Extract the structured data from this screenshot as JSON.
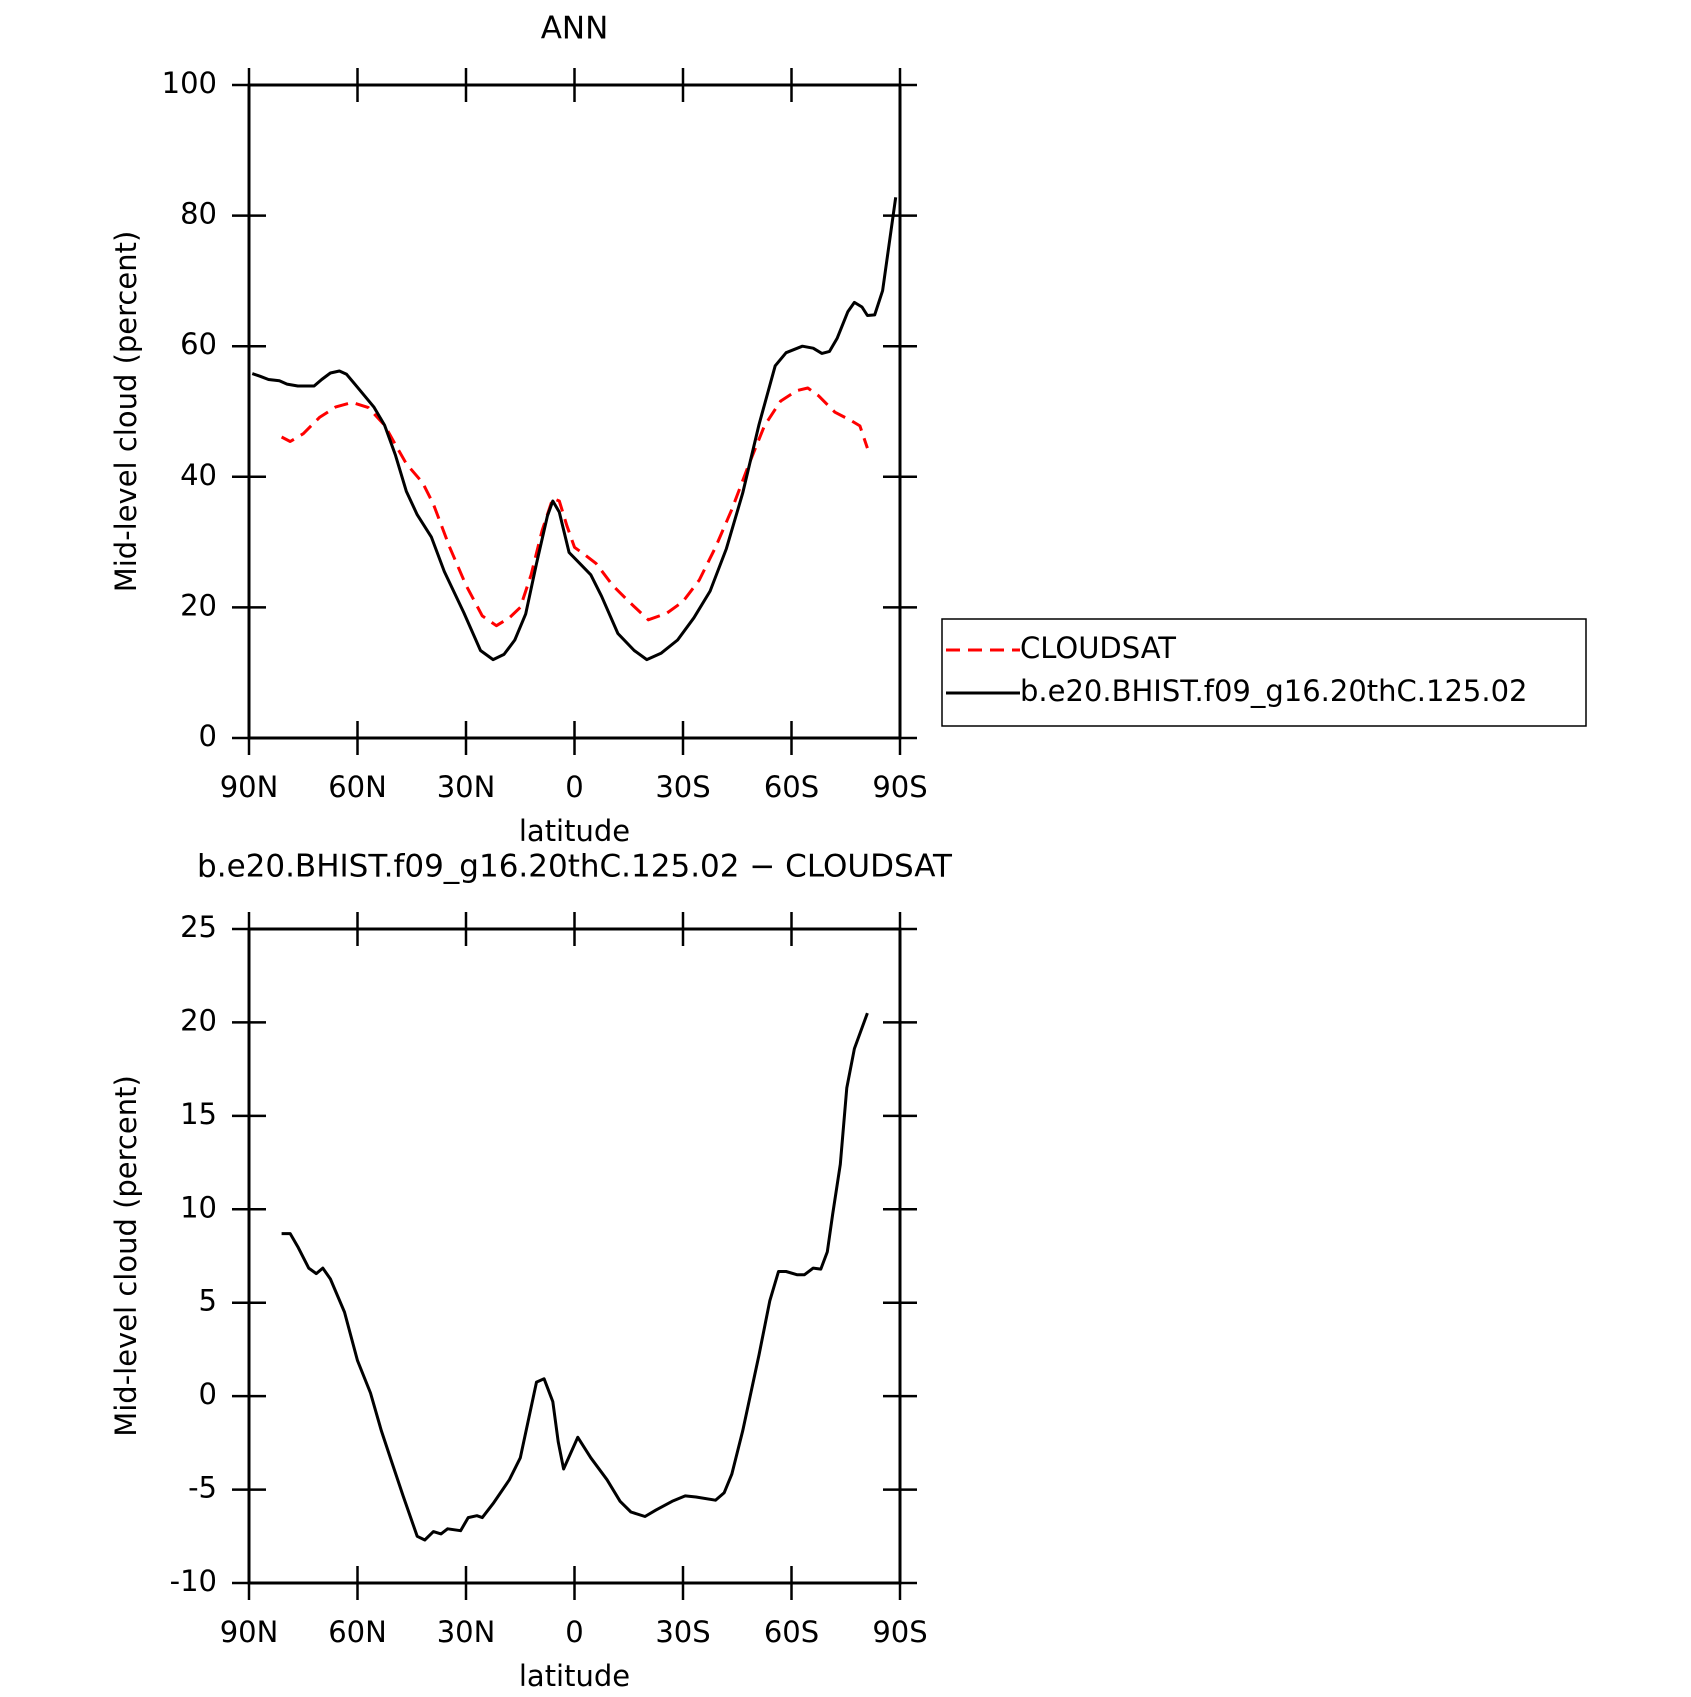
{
  "chart_data": [
    {
      "type": "line",
      "title": "ANN",
      "xlabel": "latitude",
      "ylabel": "Mid-level cloud (percent)",
      "xlim": [
        90,
        -90
      ],
      "xticks": [
        {
          "value": 90,
          "label": "90N"
        },
        {
          "value": 60,
          "label": "60N"
        },
        {
          "value": 30,
          "label": "30N"
        },
        0,
        {
          "value": -30,
          "label": "30S"
        },
        {
          "value": -60,
          "label": "60S"
        },
        {
          "value": -90,
          "label": "90S"
        }
      ],
      "ylim": [
        0,
        100
      ],
      "yticks": [
        0,
        20,
        40,
        60,
        80,
        100
      ],
      "legend": "right",
      "series": [
        {
          "name": "CLOUDSAT",
          "color": "#ff0000",
          "dash": true,
          "x": [
            81,
            78.6,
            75,
            70.5,
            66,
            61.5,
            57,
            52.5,
            49.5,
            46.5,
            42,
            39,
            34.5,
            30,
            25.5,
            21.6,
            18,
            15,
            12,
            9,
            6,
            4.2,
            2.1,
            0,
            -3,
            -6,
            -10.5,
            -15,
            -20.4,
            -25.5,
            -30,
            -34.5,
            -39,
            -43.5,
            -48,
            -52.5,
            -57,
            -61.5,
            -64.5,
            -67.5,
            -72,
            -76.5,
            -78.9,
            -81
          ],
          "values": [
            46.1,
            45.4,
            46.6,
            49.1,
            50.7,
            51.4,
            50.6,
            47.9,
            44.9,
            42,
            39.1,
            35.8,
            29.2,
            23.4,
            18.7,
            17.2,
            18.4,
            20,
            25,
            31.7,
            36.7,
            36.3,
            32.5,
            29.2,
            28,
            26.7,
            23.4,
            20.9,
            18.1,
            19.1,
            20.9,
            24.2,
            29.2,
            35,
            41.6,
            47.8,
            51.6,
            53.2,
            53.6,
            52.4,
            49.9,
            48.6,
            47.8,
            44.4
          ]
        },
        {
          "name": "b.e20.BHIST.f09_g16.20thC.125.02",
          "color": "#000000",
          "dash": false,
          "x": [
            89.1,
            87,
            84.6,
            81.6,
            79.5,
            76.5,
            72,
            69.9,
            67.5,
            65,
            63,
            60,
            55.5,
            52.5,
            49.5,
            46.5,
            43.5,
            39.6,
            36,
            30.6,
            26,
            22.5,
            19.5,
            16.5,
            13.5,
            10.5,
            7.5,
            6,
            4.2,
            1.5,
            -1.5,
            -4.5,
            -7.5,
            -12,
            -16.5,
            -20,
            -24,
            -28.5,
            -33,
            -37.5,
            -42,
            -46.5,
            -51,
            -55.5,
            -58.5,
            -63,
            -66,
            -68.4,
            -70.5,
            -72.6,
            -75.6,
            -77.4,
            -79.5,
            -81,
            -83,
            -85.2,
            -88.8
          ],
          "values": [
            55.8,
            55.4,
            54.9,
            54.7,
            54.2,
            53.9,
            53.9,
            54.9,
            55.9,
            56.2,
            55.7,
            53.7,
            50.7,
            47.9,
            43.3,
            37.8,
            34.2,
            30.8,
            25.5,
            19.2,
            13.4,
            12,
            12.8,
            15,
            19,
            26.7,
            34,
            36.3,
            34.6,
            28.4,
            26.7,
            25,
            21.7,
            16,
            13.4,
            12,
            13,
            15,
            18.4,
            22.5,
            29,
            37.5,
            48,
            57,
            59,
            60,
            59.7,
            58.9,
            59.2,
            61.2,
            65.3,
            66.7,
            66,
            64.7,
            64.8,
            68.5,
            82.8
          ]
        }
      ]
    },
    {
      "type": "line",
      "title": "b.e20.BHIST.f09_g16.20thC.125.02 − CLOUDSAT",
      "xlabel": "latitude",
      "ylabel": "Mid-level cloud (percent)",
      "xlim": [
        90,
        -90
      ],
      "xticks": [
        {
          "value": 90,
          "label": "90N"
        },
        {
          "value": 60,
          "label": "60N"
        },
        {
          "value": 30,
          "label": "30N"
        },
        0,
        {
          "value": -30,
          "label": "30S"
        },
        {
          "value": -60,
          "label": "60S"
        },
        {
          "value": -90,
          "label": "90S"
        }
      ],
      "ylim": [
        -10,
        25
      ],
      "yticks": [
        -10,
        -5,
        0,
        5,
        10,
        15,
        20,
        25
      ],
      "series": [
        {
          "color": "#000000",
          "dash": false,
          "x": [
            81,
            78.6,
            76.5,
            73.5,
            71.4,
            69.6,
            67.5,
            63.6,
            60,
            56.4,
            53.4,
            50.4,
            47.4,
            43.5,
            41.4,
            39,
            36.9,
            35.1,
            31.5,
            29.4,
            27,
            25.5,
            22.5,
            18,
            15,
            10.5,
            8.4,
            6,
            4.5,
            3,
            -0.9,
            -4.5,
            -9,
            -12.6,
            -15.6,
            -19.5,
            -22.5,
            -27,
            -30.6,
            -33.6,
            -39,
            -41.4,
            -43.5,
            -46.5,
            -51,
            -54,
            -56.4,
            -58.5,
            -61.5,
            -63.6,
            -66,
            -68.1,
            -69.9,
            -71.4,
            -73.5,
            -75.3,
            -77.4,
            -81
          ],
          "values": [
            8.7,
            8.7,
            8,
            6.85,
            6.56,
            6.85,
            6.27,
            4.5,
            1.9,
            0.17,
            -1.86,
            -3.6,
            -5.34,
            -7.5,
            -7.7,
            -7.25,
            -7.37,
            -7.1,
            -7.2,
            -6.5,
            -6.4,
            -6.5,
            -5.75,
            -4.47,
            -3.3,
            0.75,
            0.93,
            -0.29,
            -2.44,
            -3.9,
            -2.2,
            -3.3,
            -4.47,
            -5.63,
            -6.2,
            -6.44,
            -6.1,
            -5.63,
            -5.34,
            -5.4,
            -5.57,
            -5.17,
            -4.18,
            -1.86,
            2.2,
            5.1,
            6.67,
            6.67,
            6.5,
            6.5,
            6.85,
            6.8,
            7.72,
            9.75,
            12.4,
            16.5,
            18.6,
            20.5
          ]
        }
      ]
    }
  ]
}
